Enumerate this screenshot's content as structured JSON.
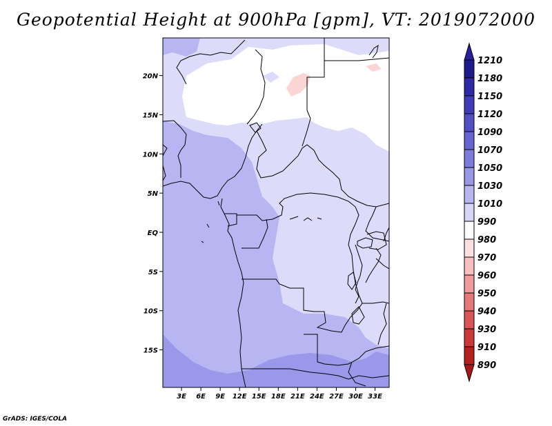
{
  "title": "Geopotential Height at 900hPa [gpm], VT: 2019072000",
  "footer": "GrADS: IGES/COLA",
  "map": {
    "lon_range": [
      0,
      35
    ],
    "lat_range": [
      -20,
      25
    ],
    "y_ticks": [
      {
        "lat": 20,
        "label": "20N"
      },
      {
        "lat": 15,
        "label": "15N"
      },
      {
        "lat": 10,
        "label": "10N"
      },
      {
        "lat": 5,
        "label": "5N"
      },
      {
        "lat": 0,
        "label": "EQ"
      },
      {
        "lat": -5,
        "label": "5S"
      },
      {
        "lat": -10,
        "label": "10S"
      },
      {
        "lat": -15,
        "label": "15S"
      }
    ],
    "x_ticks": [
      {
        "lon": 3,
        "label": "3E"
      },
      {
        "lon": 6,
        "label": "6E"
      },
      {
        "lon": 9,
        "label": "9E"
      },
      {
        "lon": 12,
        "label": "12E"
      },
      {
        "lon": 15,
        "label": "15E"
      },
      {
        "lon": 18,
        "label": "18E"
      },
      {
        "lon": 21,
        "label": "21E"
      },
      {
        "lon": 24,
        "label": "24E"
      },
      {
        "lon": 27,
        "label": "27E"
      },
      {
        "lon": 30,
        "label": "30E"
      },
      {
        "lon": 33,
        "label": "33E"
      }
    ]
  },
  "colorbar": {
    "levels": [
      "1210",
      "1180",
      "1150",
      "1120",
      "1090",
      "1070",
      "1050",
      "1030",
      "1010",
      "990",
      "980",
      "970",
      "960",
      "950",
      "940",
      "930",
      "910",
      "890"
    ],
    "colors": [
      "#1e1a8c",
      "#2e2aa6",
      "#3f3cb8",
      "#524fc6",
      "#6664d2",
      "#7d7bdc",
      "#9997e6",
      "#b8b6f0",
      "#d6d6f7",
      "#ffffff",
      "#fde0e0",
      "#f9c0c0",
      "#f19c9c",
      "#e67878",
      "#da5656",
      "#cb3838",
      "#b62020"
    ],
    "top_color": "#2a1f9a",
    "bottom_color": "#a81818"
  },
  "fill_colors": {
    "level_1050": "#9b98ea",
    "level_1030": "#b8b6f2",
    "level_1010": "#dcdbf9",
    "level_990": "#ffffff",
    "level_980": "#fbd4d4"
  }
}
